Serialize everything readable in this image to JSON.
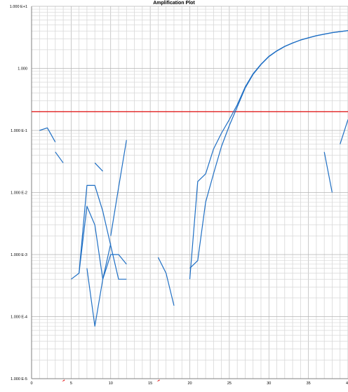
{
  "chart_data": {
    "type": "line",
    "title": "Amplification Plot",
    "xlabel": "",
    "ylabel": "",
    "y_scale": "log",
    "xlim": [
      0,
      40
    ],
    "ylim": [
      1e-05,
      10
    ],
    "x_ticks": [
      0,
      5,
      10,
      15,
      20,
      25,
      30,
      35,
      40
    ],
    "x_tick_labels": [
      "0",
      "5",
      "10",
      "15",
      "20",
      "25",
      "30",
      "35",
      "40"
    ],
    "y_ticks": [
      1e-05,
      0.0001,
      0.001,
      0.01,
      0.1,
      1,
      10
    ],
    "y_tick_labels": [
      "1.000 E-5",
      "1.000 E-4",
      "1.000 E-3",
      "1.000 E-2",
      "1.000 E-1",
      "1.000",
      "1.000 E+1"
    ],
    "grid": true,
    "threshold": {
      "value": 0.2,
      "color": "#e02020"
    },
    "series_color": "#1f6fc4",
    "series": [
      {
        "x": [
          20,
          21,
          22,
          23,
          24,
          25,
          26,
          27,
          28,
          29,
          30,
          31,
          32,
          33,
          34,
          35,
          36,
          37,
          38,
          39,
          40
        ],
        "values": [
          0.0006,
          0.0008,
          0.007,
          0.02,
          0.055,
          0.12,
          0.24,
          0.48,
          0.8,
          1.15,
          1.55,
          1.9,
          2.25,
          2.55,
          2.85,
          3.1,
          3.35,
          3.55,
          3.75,
          3.9,
          4.05
        ]
      },
      {
        "x": [
          20,
          21,
          22,
          23,
          24,
          25,
          26,
          27,
          28,
          29,
          30,
          31,
          32,
          33,
          34,
          35,
          36,
          37,
          38,
          39,
          40
        ],
        "values": [
          0.0004,
          0.015,
          0.02,
          0.05,
          0.09,
          0.15,
          0.26,
          0.5,
          0.82,
          1.17,
          1.57,
          1.92,
          2.27,
          2.57,
          2.87,
          3.12,
          3.37,
          3.57,
          3.77,
          3.92,
          4.07
        ]
      },
      {
        "x": [
          1,
          2,
          3
        ],
        "values": [
          0.1,
          0.11,
          0.065
        ]
      },
      {
        "x": [
          3,
          4
        ],
        "values": [
          0.045,
          0.03
        ]
      },
      {
        "x": [
          5,
          6,
          7,
          8,
          9,
          10,
          11,
          12
        ],
        "values": [
          0.0004,
          0.0005,
          0.013,
          0.013,
          0.005,
          0.0014,
          0.0004,
          0.0004
        ]
      },
      {
        "x": [
          6,
          7,
          8,
          9,
          10,
          11,
          12
        ],
        "values": [
          0.0005,
          0.006,
          0.003,
          0.0004,
          0.001,
          0.001,
          0.0007
        ]
      },
      {
        "x": [
          7,
          8,
          9,
          10
        ],
        "values": [
          0.0006,
          7e-05,
          0.0004,
          0.0015
        ]
      },
      {
        "x": [
          8,
          9
        ],
        "values": [
          0.03,
          0.022
        ]
      },
      {
        "x": [
          10,
          11,
          12
        ],
        "values": [
          0.002,
          0.012,
          0.07
        ]
      },
      {
        "x": [
          16,
          17,
          18
        ],
        "values": [
          0.0009,
          0.0005,
          0.00015
        ]
      },
      {
        "x": [
          37,
          38
        ],
        "values": [
          0.045,
          0.01
        ]
      },
      {
        "x": [
          39,
          40
        ],
        "values": [
          0.06,
          0.15
        ]
      }
    ],
    "axis_markers": [
      {
        "x": 4,
        "color": "#e02020"
      },
      {
        "x": 16,
        "color": "#e02020"
      }
    ]
  }
}
